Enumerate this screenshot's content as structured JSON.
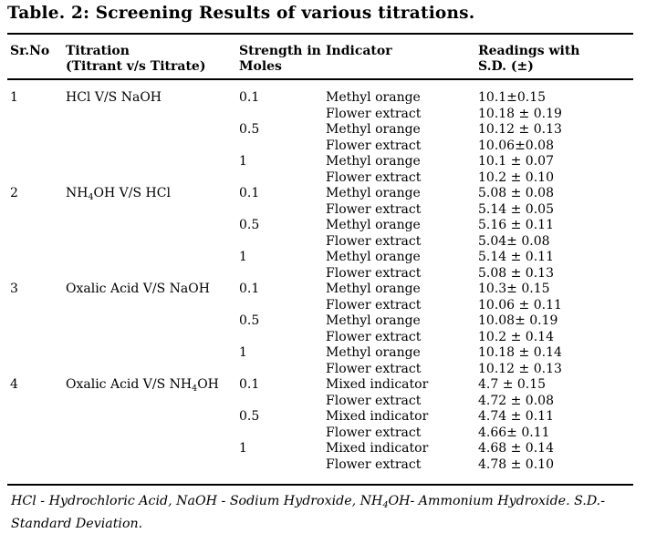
{
  "title": "Table. 2: Screening Results of various titrations.",
  "columns": {
    "srno": "Sr.No",
    "titration_l1": "Titration",
    "titration_l2": "(Titrant v/s Titrate)",
    "strength_l1": "Strength in",
    "strength_l2": "Moles",
    "indicator": "Indicator",
    "readings_l1": "Readings with",
    "readings_l2": "S.D. (±)"
  },
  "groups": [
    {
      "sr": "1",
      "titration_pre": "HCl V/S NaOH",
      "titration_sub": "",
      "titration_post": ""
    },
    {
      "sr": "2",
      "titration_pre": "NH",
      "titration_sub": "4",
      "titration_post": "OH V/S HCl"
    },
    {
      "sr": "3",
      "titration_pre": "Oxalic Acid V/S NaOH",
      "titration_sub": "",
      "titration_post": ""
    },
    {
      "sr": "4",
      "titration_pre": "Oxalic Acid V/S NH",
      "titration_sub": "4",
      "titration_post": "OH"
    }
  ],
  "rows": [
    {
      "strength": "0.1",
      "indicator": "Methyl orange",
      "reading": "10.1±0.15"
    },
    {
      "strength": "",
      "indicator": "Flower extract",
      "reading": "10.18 ± 0.19"
    },
    {
      "strength": "0.5",
      "indicator": "Methyl orange",
      "reading": "10.12 ± 0.13"
    },
    {
      "strength": "",
      "indicator": "Flower extract",
      "reading": "10.06±0.08"
    },
    {
      "strength": "1",
      "indicator": "Methyl orange",
      "reading": "10.1 ± 0.07"
    },
    {
      "strength": "",
      "indicator": "Flower extract",
      "reading": "10.2 ± 0.10"
    },
    {
      "strength": "0.1",
      "indicator": "Methyl orange",
      "reading": "5.08 ± 0.08"
    },
    {
      "strength": "",
      "indicator": "Flower extract",
      "reading": "5.14 ± 0.05"
    },
    {
      "strength": "0.5",
      "indicator": "Methyl orange",
      "reading": "5.16 ± 0.11"
    },
    {
      "strength": "",
      "indicator": "Flower extract",
      "reading": "5.04± 0.08"
    },
    {
      "strength": "1",
      "indicator": "Methyl orange",
      "reading": "5.14 ± 0.11"
    },
    {
      "strength": "",
      "indicator": "Flower extract",
      "reading": "5.08 ± 0.13"
    },
    {
      "strength": "0.1",
      "indicator": "Methyl orange",
      "reading": "10.3± 0.15"
    },
    {
      "strength": "",
      "indicator": "Flower extract",
      "reading": "10.06 ± 0.11"
    },
    {
      "strength": "0.5",
      "indicator": "Methyl orange",
      "reading": "10.08± 0.19"
    },
    {
      "strength": "",
      "indicator": "Flower extract",
      "reading": "10.2 ± 0.14"
    },
    {
      "strength": "1",
      "indicator": "Methyl orange",
      "reading": "10.18 ± 0.14"
    },
    {
      "strength": "",
      "indicator": "Flower extract",
      "reading": "10.12 ± 0.13"
    },
    {
      "strength": "0.1",
      "indicator": "Mixed indicator",
      "reading": "4.7 ± 0.15"
    },
    {
      "strength": "",
      "indicator": "Flower extract",
      "reading": "4.72 ± 0.08"
    },
    {
      "strength": "0.5",
      "indicator": "Mixed indicator",
      "reading": "4.74 ± 0.11"
    },
    {
      "strength": "",
      "indicator": "Flower extract",
      "reading": "4.66± 0.11"
    },
    {
      "strength": "1",
      "indicator": "Mixed indicator",
      "reading": "4.68 ± 0.14"
    },
    {
      "strength": "",
      "indicator": "Flower extract",
      "reading": "4.78 ± 0.10"
    }
  ],
  "footnote": {
    "part1": "HCl - Hydrochloric Acid, NaOH - Sodium Hydroxide, NH",
    "sub": "4",
    "part2": "OH- Ammonium Hydroxide. S.D.- Standard Deviation."
  }
}
